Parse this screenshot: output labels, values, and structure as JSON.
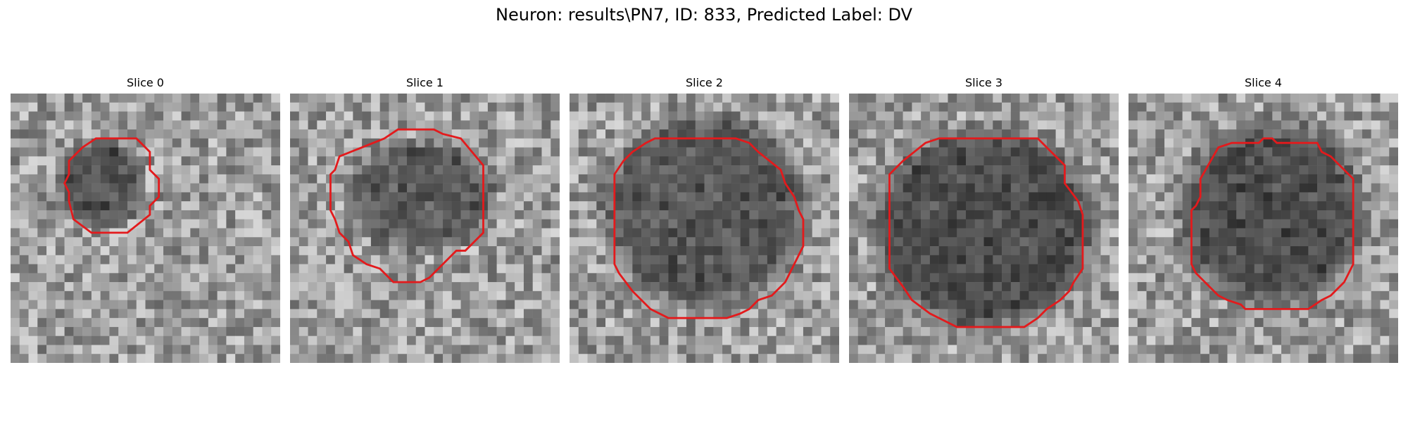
{
  "figure": {
    "title": "Neuron: results\\PN7, ID: 833, Predicted Label: DV"
  },
  "panels": [
    {
      "title": "Slice 0"
    },
    {
      "title": "Slice 1"
    },
    {
      "title": "Slice 2"
    },
    {
      "title": "Slice 3"
    },
    {
      "title": "Slice 4"
    }
  ],
  "contour_color": "#e31a1c",
  "colormap": "grayscale"
}
